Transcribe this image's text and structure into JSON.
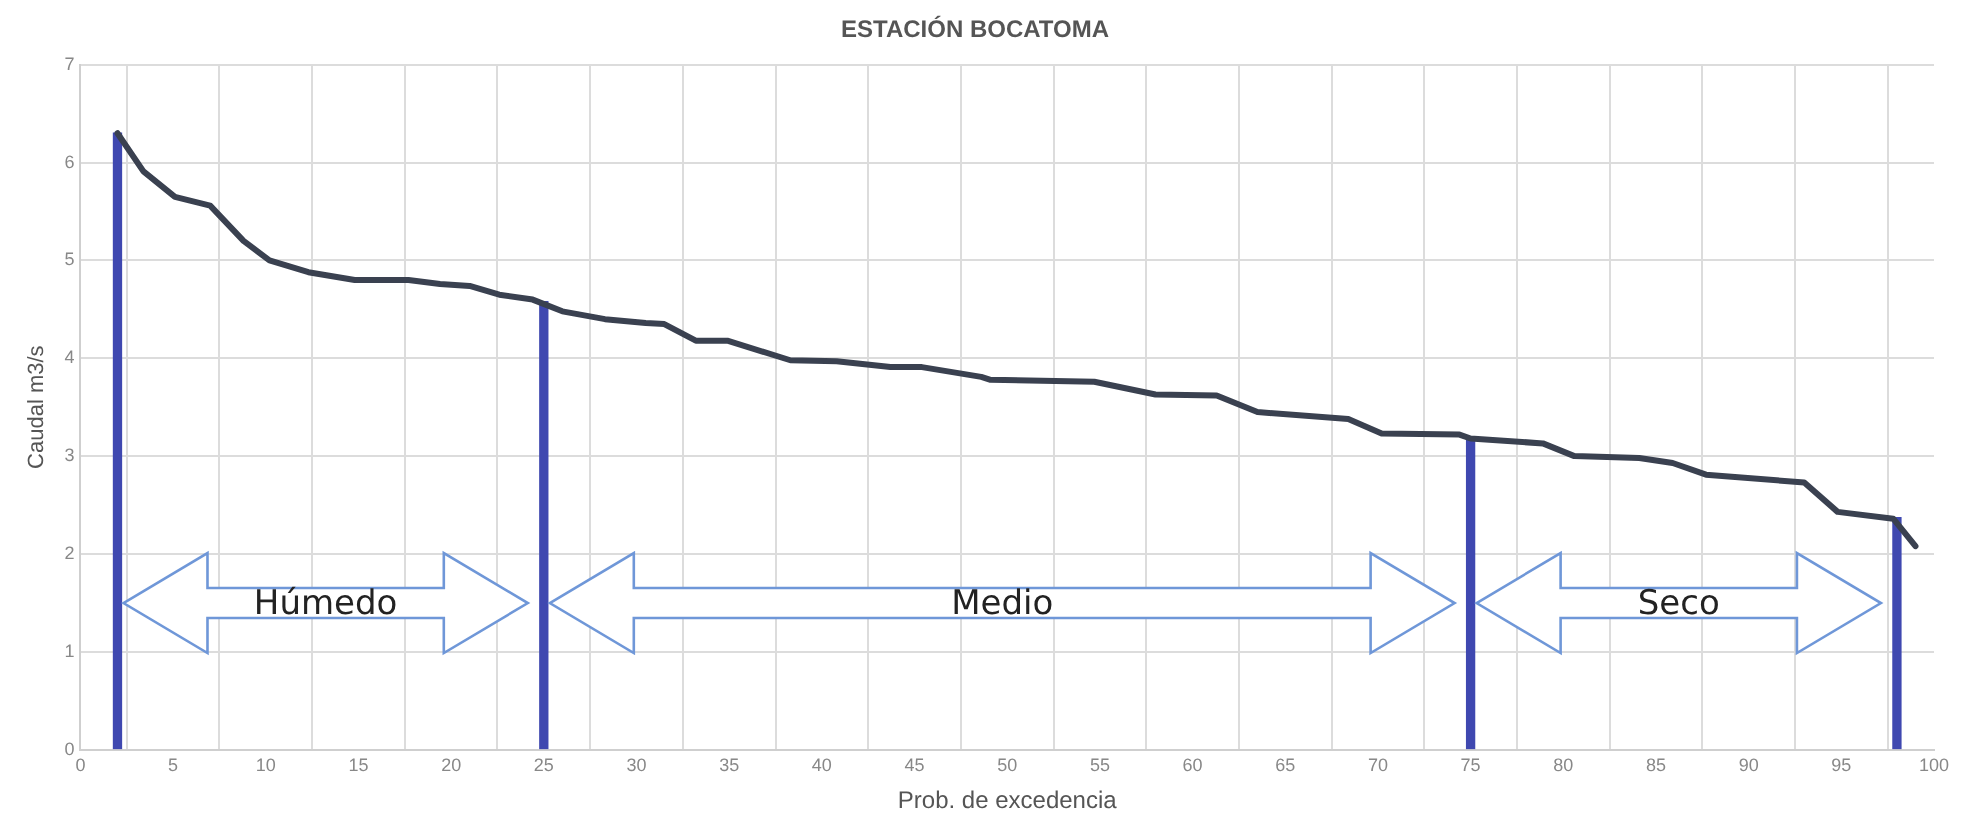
{
  "chart_data": {
    "type": "line",
    "title": "ESTACIÓN BOCATOMA",
    "xlabel": "Prob. de excedencia",
    "ylabel": "Caudal m3/s",
    "xlim": [
      0,
      100
    ],
    "xticks": [
      0,
      5,
      10,
      15,
      20,
      25,
      30,
      35,
      40,
      45,
      50,
      55,
      60,
      65,
      70,
      75,
      80,
      85,
      90,
      95,
      100
    ],
    "ylim": [
      0,
      7
    ],
    "yticks": [
      0,
      1,
      2,
      3,
      4,
      5,
      6,
      7
    ],
    "grid": true,
    "legend": false,
    "series": [
      {
        "color": "#3a4150",
        "x": [
          2,
          3.4,
          5.1,
          7,
          8.8,
          10.2,
          12.3,
          14.8,
          17.7,
          19.4,
          21,
          22.6,
          24.4,
          26,
          28.3,
          30.5,
          31.5,
          33.2,
          34.9,
          38.3,
          40.8,
          43.7,
          45.4,
          48.6,
          49.1,
          54.7,
          58,
          61.3,
          63.5,
          68.4,
          70.2,
          74.4,
          75,
          78.9,
          80.6,
          84.1,
          85.9,
          87.7,
          93,
          94.8,
          97.8,
          99
        ],
        "values": [
          6.3,
          5.91,
          5.65,
          5.56,
          5.2,
          5.0,
          4.88,
          4.8,
          4.8,
          4.76,
          4.74,
          4.65,
          4.6,
          4.48,
          4.4,
          4.36,
          4.35,
          4.18,
          4.18,
          3.98,
          3.97,
          3.91,
          3.91,
          3.81,
          3.78,
          3.76,
          3.63,
          3.62,
          3.45,
          3.38,
          3.23,
          3.22,
          3.18,
          3.13,
          3.0,
          2.98,
          2.93,
          2.81,
          2.73,
          2.43,
          2.36,
          2.08
        ]
      },
      {
        "type": "bar",
        "color": "#3f48b0",
        "x": [
          2,
          25,
          75,
          98
        ],
        "values": [
          6.3,
          4.58,
          3.18,
          2.37
        ]
      }
    ],
    "annotations": [
      "Húmedo",
      "Medio",
      "Seco"
    ]
  }
}
